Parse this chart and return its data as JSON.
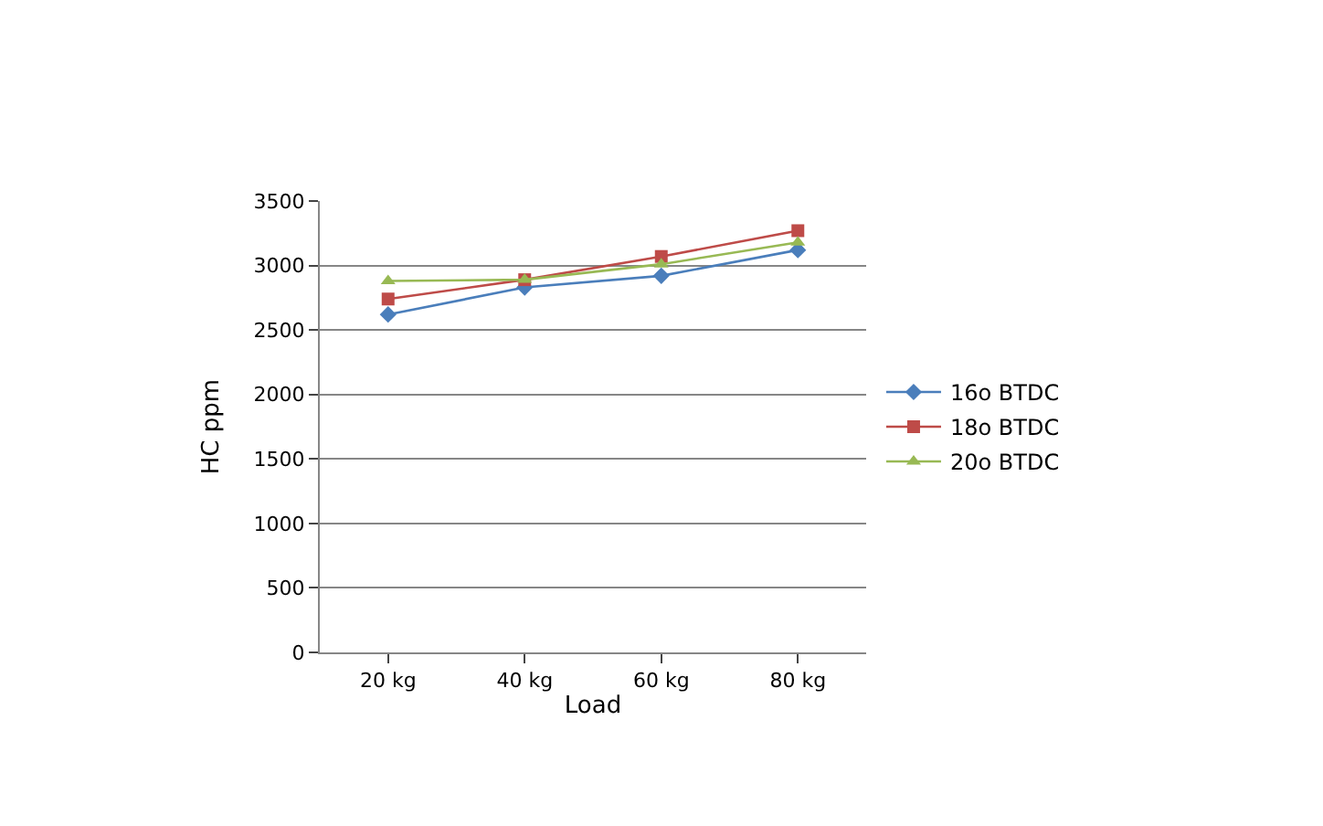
{
  "chart_data": {
    "type": "line",
    "xlabel": "Load",
    "ylabel": "HC ppm",
    "categories": [
      "20 kg",
      "40 kg",
      "60 kg",
      "80 kg"
    ],
    "series": [
      {
        "name": "16o BTDC",
        "color": "#4a7ebb",
        "marker": "diamond",
        "values": [
          2620,
          2830,
          2920,
          3120
        ]
      },
      {
        "name": "18o BTDC",
        "color": "#be4b48",
        "marker": "square",
        "values": [
          2740,
          2890,
          3070,
          3270
        ]
      },
      {
        "name": "20o BTDC",
        "color": "#98b954",
        "marker": "triangle",
        "values": [
          2880,
          2890,
          3010,
          3180
        ]
      }
    ],
    "ylim": [
      0,
      3500
    ],
    "yticks": [
      0,
      500,
      1000,
      1500,
      2000,
      2500,
      3000,
      3500
    ],
    "grid": "y",
    "legend": "right",
    "line_style": "solid"
  }
}
